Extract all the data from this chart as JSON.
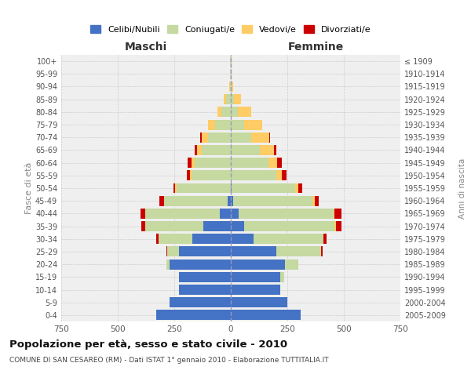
{
  "age_groups": [
    "0-4",
    "5-9",
    "10-14",
    "15-19",
    "20-24",
    "25-29",
    "30-34",
    "35-39",
    "40-44",
    "45-49",
    "50-54",
    "55-59",
    "60-64",
    "65-69",
    "70-74",
    "75-79",
    "80-84",
    "85-89",
    "90-94",
    "95-99",
    "100+"
  ],
  "birth_years": [
    "2005-2009",
    "2000-2004",
    "1995-1999",
    "1990-1994",
    "1985-1989",
    "1980-1984",
    "1975-1979",
    "1970-1974",
    "1965-1969",
    "1960-1964",
    "1955-1959",
    "1950-1954",
    "1945-1949",
    "1940-1944",
    "1935-1939",
    "1930-1934",
    "1925-1929",
    "1920-1924",
    "1915-1919",
    "1910-1914",
    "≤ 1909"
  ],
  "males": {
    "celibe": [
      330,
      270,
      230,
      230,
      270,
      230,
      170,
      120,
      50,
      15,
      0,
      0,
      0,
      0,
      0,
      0,
      0,
      0,
      0,
      0,
      0
    ],
    "coniugato": [
      0,
      0,
      0,
      0,
      15,
      50,
      150,
      260,
      330,
      280,
      240,
      170,
      160,
      130,
      100,
      70,
      40,
      20,
      5,
      3,
      2
    ],
    "vedovo": [
      0,
      0,
      0,
      0,
      0,
      0,
      0,
      0,
      0,
      0,
      5,
      10,
      15,
      20,
      30,
      30,
      20,
      10,
      2,
      0,
      0
    ],
    "divorziato": [
      0,
      0,
      0,
      0,
      0,
      3,
      10,
      15,
      20,
      20,
      10,
      15,
      15,
      10,
      5,
      0,
      0,
      0,
      0,
      0,
      0
    ]
  },
  "females": {
    "nubile": [
      310,
      250,
      220,
      220,
      240,
      200,
      100,
      60,
      35,
      10,
      5,
      0,
      0,
      0,
      0,
      0,
      0,
      0,
      0,
      0,
      0
    ],
    "coniugata": [
      0,
      0,
      0,
      15,
      60,
      200,
      310,
      400,
      420,
      350,
      280,
      200,
      165,
      130,
      90,
      60,
      30,
      15,
      5,
      3,
      2
    ],
    "vedova": [
      0,
      0,
      0,
      0,
      0,
      0,
      0,
      5,
      5,
      10,
      15,
      25,
      40,
      60,
      80,
      80,
      60,
      30,
      5,
      2,
      0
    ],
    "divorziata": [
      0,
      0,
      0,
      0,
      0,
      5,
      15,
      25,
      30,
      20,
      15,
      20,
      20,
      10,
      5,
      0,
      0,
      0,
      0,
      0,
      0
    ]
  },
  "colors": {
    "celibe_nubile": "#4472C4",
    "coniugato_coniugata": "#c5d9a0",
    "vedovo_vedova": "#FFCC66",
    "divorziato_divorziata": "#CC0000"
  },
  "xlim": 750,
  "title": "Popolazione per età, sesso e stato civile - 2010",
  "subtitle": "COMUNE DI SAN CESAREO (RM) - Dati ISTAT 1° gennaio 2010 - Elaborazione TUTTITALIA.IT",
  "xlabel_left": "Maschi",
  "xlabel_right": "Femmine",
  "ylabel_left": "Fasce di età",
  "ylabel_right": "Anni di nascita",
  "background_color": "#efefef",
  "grid_color": "#cccccc"
}
